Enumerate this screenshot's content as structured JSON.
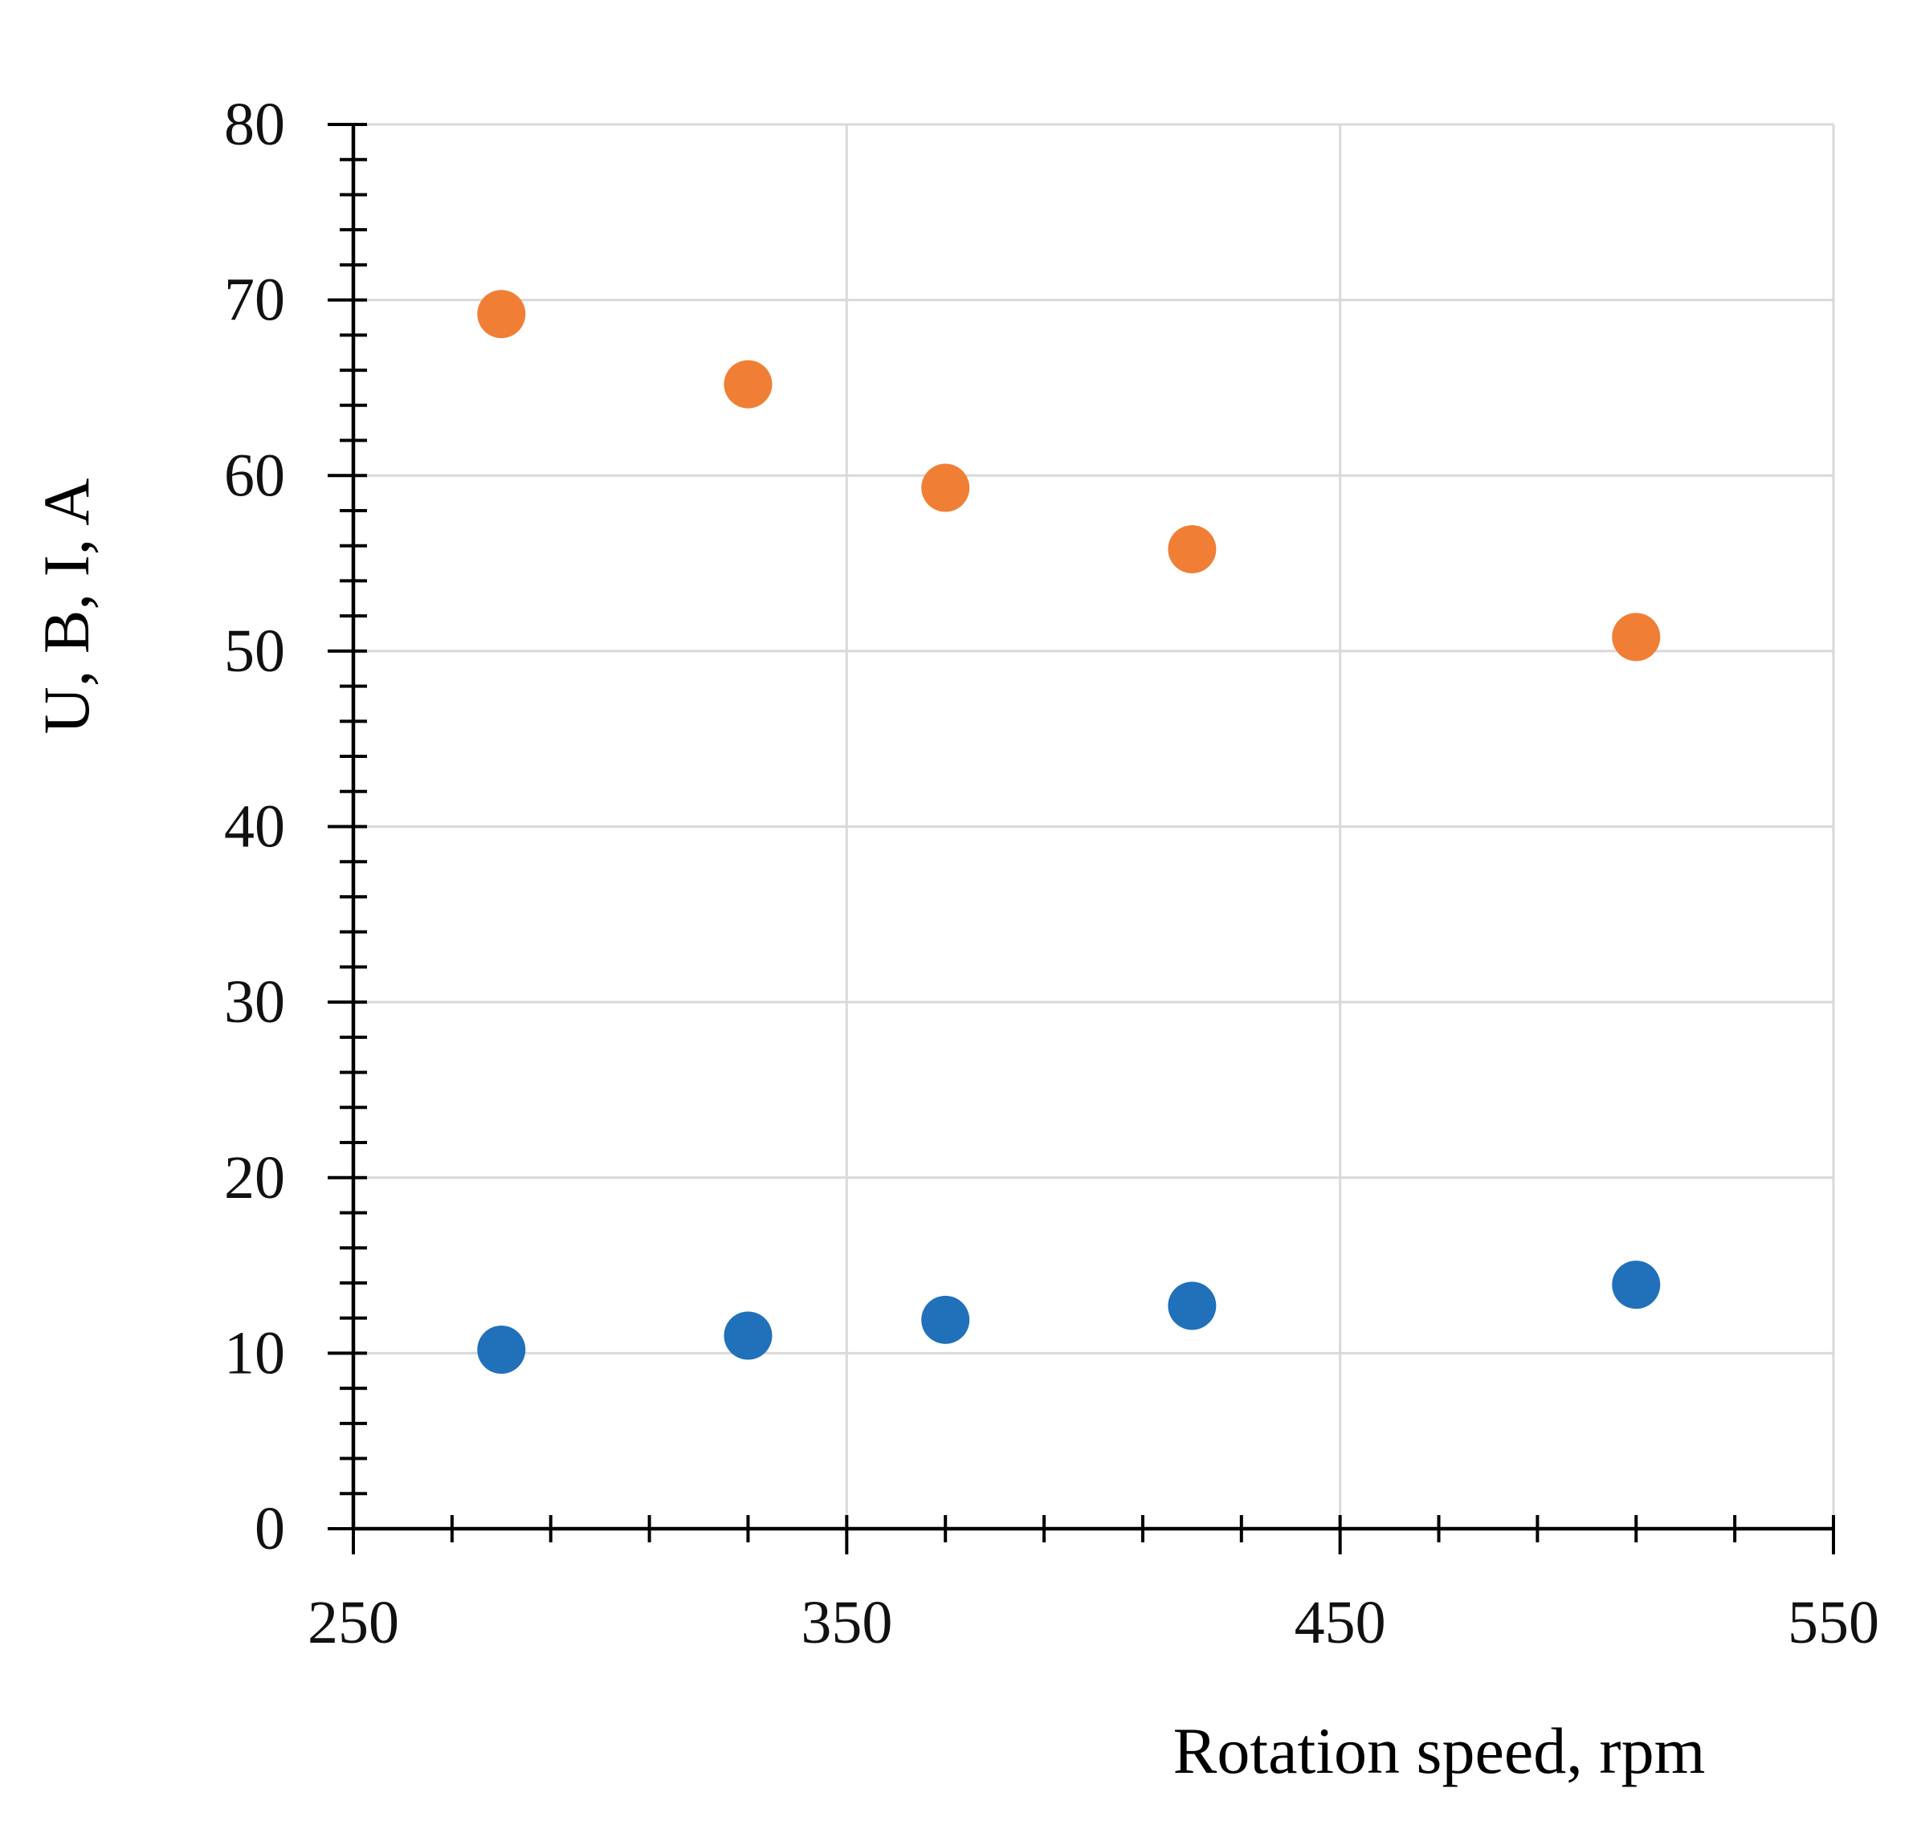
{
  "chart_data": {
    "type": "scatter",
    "title": "",
    "xlabel": "Rotation speed, rpm",
    "ylabel": "U, B, I, A",
    "xlim": [
      250,
      550
    ],
    "ylim": [
      0,
      80
    ],
    "x_ticks": [
      250,
      350,
      450,
      550
    ],
    "y_ticks": [
      0,
      10,
      20,
      30,
      40,
      50,
      60,
      70,
      80
    ],
    "x_tick_labels": [
      "250",
      "350",
      "450",
      "550"
    ],
    "y_tick_labels": [
      "0",
      "10",
      "20",
      "30",
      "40",
      "50",
      "60",
      "70",
      "80"
    ],
    "x_minor_step": 20,
    "y_minor_step": 2,
    "grid": true,
    "legend": "none",
    "series": [
      {
        "color": "#f07f35",
        "x": [
          280,
          330,
          370,
          420,
          510
        ],
        "y": [
          69.2,
          65.2,
          59.3,
          55.8,
          50.8
        ]
      },
      {
        "color": "#2170ba",
        "x": [
          280,
          330,
          370,
          420,
          510
        ],
        "y": [
          10.2,
          11.0,
          11.9,
          12.7,
          13.9
        ]
      }
    ]
  }
}
